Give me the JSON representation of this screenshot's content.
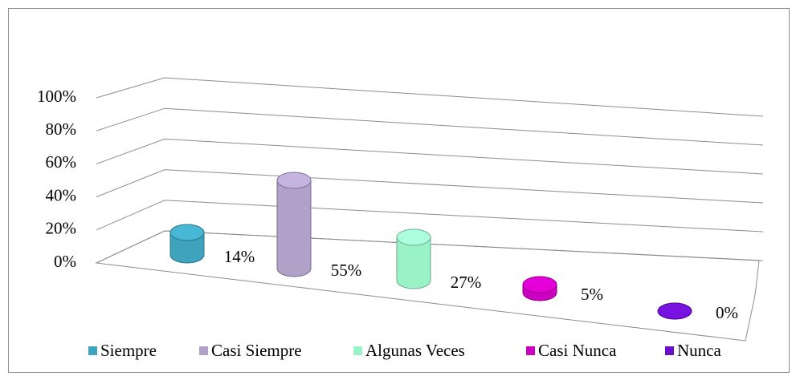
{
  "chart_data": {
    "type": "bar3d",
    "categories": [
      "Siempre",
      "Casi Siempre",
      "Algunas Veces",
      "Casi Nunca",
      "Nunca"
    ],
    "values": [
      14,
      55,
      27,
      5,
      0
    ],
    "value_labels": [
      "14%",
      "55%",
      "27%",
      "5%",
      "0%"
    ],
    "colors": [
      "#3fa3be",
      "#b1a0c8",
      "#9af3c6",
      "#cc00c0",
      "#6a10c8"
    ],
    "ylim": [
      0,
      100
    ],
    "yticks": [
      {
        "value": 0,
        "label": "0%"
      },
      {
        "value": 20,
        "label": "20%"
      },
      {
        "value": 40,
        "label": "40%"
      },
      {
        "value": 60,
        "label": "60%"
      },
      {
        "value": 80,
        "label": "80%"
      },
      {
        "value": 100,
        "label": "100%"
      }
    ],
    "grid": true,
    "legend": "bottom"
  }
}
